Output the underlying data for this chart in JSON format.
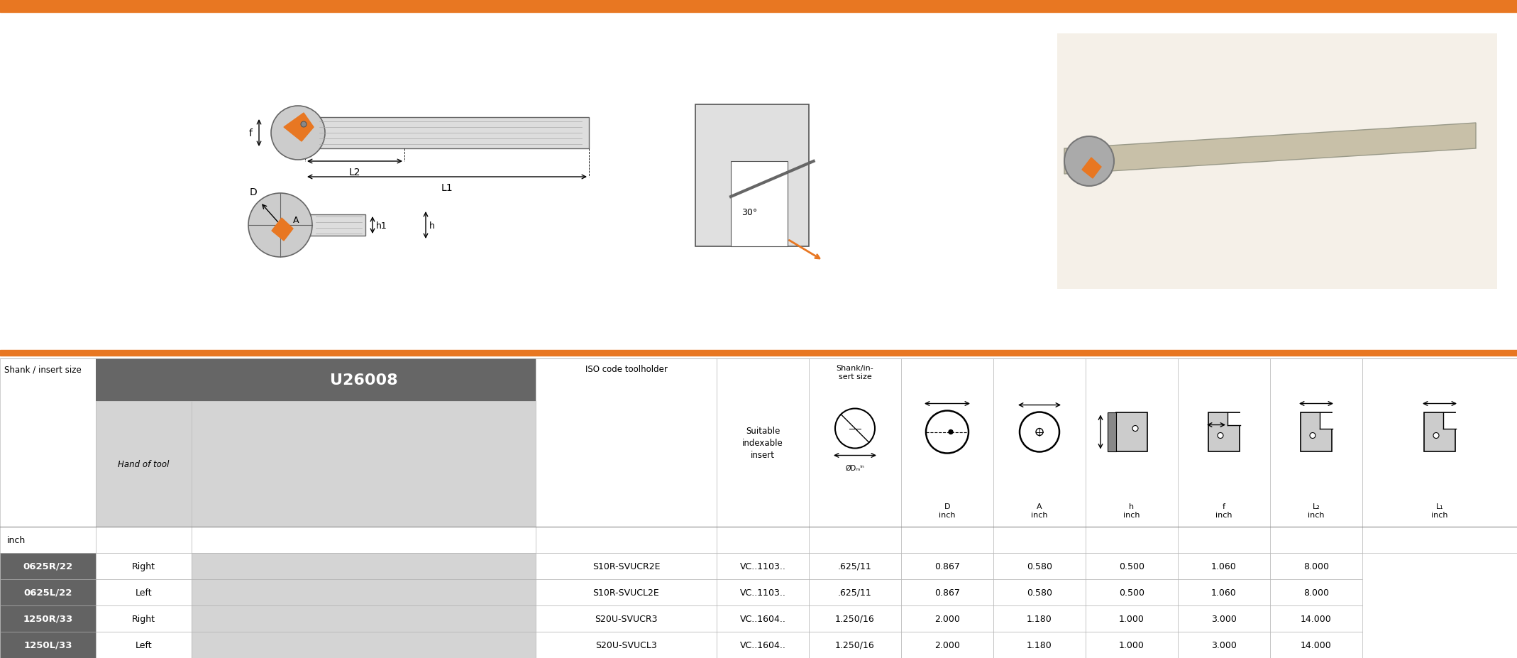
{
  "orange_color": "#E87722",
  "dark_gray": "#666666",
  "medium_gray": "#C0C0C0",
  "light_gray": "#D4D4D4",
  "row_bg": "#636363",
  "white": "#FFFFFF",
  "black": "#000000",
  "table_rows": [
    [
      "0625R/22",
      "Right",
      "S10R-SVUCR2E",
      "VC..1103..",
      ".625/11",
      "0.867",
      "0.580",
      "0.500",
      "1.060",
      "8.000"
    ],
    [
      "0625L/22",
      "Left",
      "S10R-SVUCL2E",
      "VC..1103..",
      ".625/11",
      "0.867",
      "0.580",
      "0.500",
      "1.060",
      "8.000"
    ],
    [
      "1250R/33",
      "Right",
      "S20U-SVUCR3",
      "VC..1604..",
      "1.250/16",
      "2.000",
      "1.180",
      "1.000",
      "3.000",
      "14.000"
    ],
    [
      "1250L/33",
      "Left",
      "S20U-SVUCL3",
      "VC..1604..",
      "1.250/16",
      "2.000",
      "1.180",
      "1.000",
      "3.000",
      "14.000"
    ]
  ],
  "col_labels_top": [
    "D",
    "A",
    "h",
    "f",
    "L₂",
    "L₁"
  ],
  "col_labels_bot": [
    "inch",
    "inch",
    "inch",
    "inch",
    "inch",
    "inch"
  ],
  "shank_insert_label": "Shank / insert size",
  "hand_of_tool": "Hand of tool",
  "u26008": "U26008",
  "iso_label": "ISO code toolholder",
  "suitable_label": "Suitable\nindexable\ninsert",
  "shank_size_label": "Shank/in-\nsert size",
  "od_min_label": "ØDₘᴵⁿ",
  "inch_label": "inch"
}
